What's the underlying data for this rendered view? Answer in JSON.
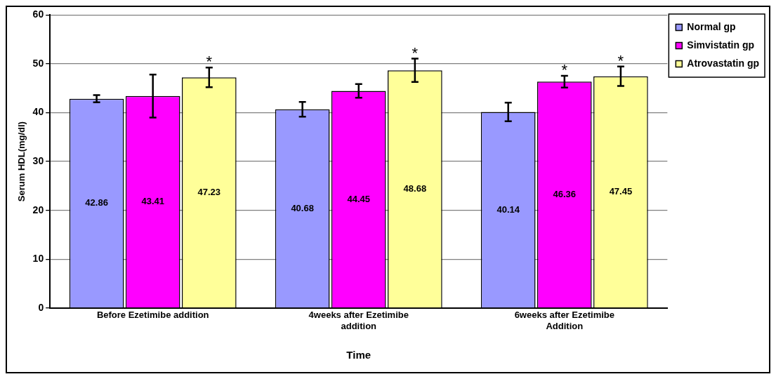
{
  "chart_data": {
    "type": "bar",
    "xlabel": "Time",
    "ylabel": "Serum HDL(mg/dl)",
    "categories": [
      "Before Ezetimibe addition",
      "4weeks after Ezetimibe addition",
      "6weeks after Ezetimibe Addition"
    ],
    "series": [
      {
        "name": "Normal gp",
        "color": "#9999ff",
        "values": [
          42.86,
          40.68,
          40.14
        ],
        "errors": [
          0.75,
          1.5,
          1.9
        ]
      },
      {
        "name": "Simvistatin gp",
        "color": "#ff00ff",
        "values": [
          43.41,
          44.45,
          46.36
        ],
        "errors": [
          4.4,
          1.4,
          1.2
        ]
      },
      {
        "name": "Atrovastatin gp",
        "color": "#ffff99",
        "values": [
          47.23,
          48.68,
          47.45
        ],
        "errors": [
          2,
          2.4,
          2
        ]
      }
    ],
    "ylim": [
      0,
      60
    ],
    "yticks": [
      0,
      10,
      20,
      30,
      40,
      50,
      60
    ],
    "grid": "y",
    "legend": "top right",
    "data_labels": true,
    "annotations": [
      "*",
      "*",
      "*",
      "*"
    ]
  }
}
